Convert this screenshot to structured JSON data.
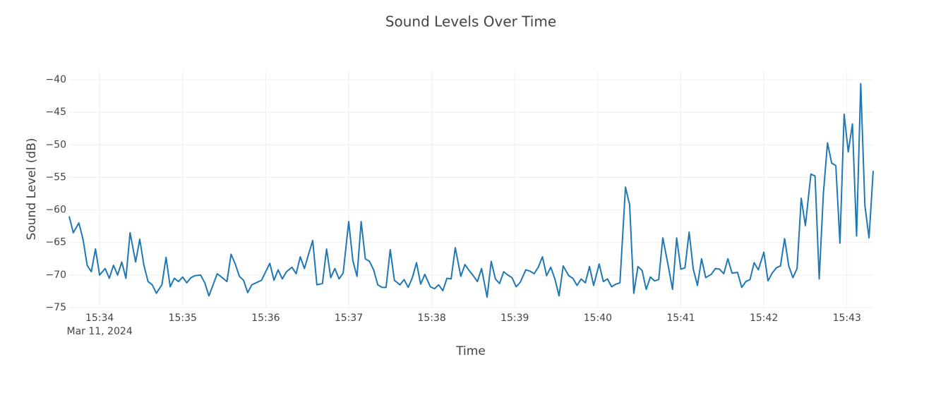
{
  "chart_data": {
    "type": "line",
    "title": "Sound Levels Over Time",
    "x_label": "Time",
    "y_label": "Sound Level (dB)",
    "x_date_label": "Mar 11, 2024",
    "x": [
      "2024-03-11 15:33:38",
      "2024-03-11 15:33:41",
      "2024-03-11 15:33:45",
      "2024-03-11 15:33:48",
      "2024-03-11 15:33:51",
      "2024-03-11 15:33:54",
      "2024-03-11 15:33:57",
      "2024-03-11 15:34:00",
      "2024-03-11 15:34:04",
      "2024-03-11 15:34:07",
      "2024-03-11 15:34:10",
      "2024-03-11 15:34:13",
      "2024-03-11 15:34:16",
      "2024-03-11 15:34:19",
      "2024-03-11 15:34:22",
      "2024-03-11 15:34:26",
      "2024-03-11 15:34:29",
      "2024-03-11 15:34:32",
      "2024-03-11 15:34:35",
      "2024-03-11 15:34:38",
      "2024-03-11 15:34:41",
      "2024-03-11 15:34:45",
      "2024-03-11 15:34:48",
      "2024-03-11 15:34:51",
      "2024-03-11 15:34:54",
      "2024-03-11 15:34:57",
      "2024-03-11 15:35:00",
      "2024-03-11 15:35:03",
      "2024-03-11 15:35:06",
      "2024-03-11 15:35:09",
      "2024-03-11 15:35:13",
      "2024-03-11 15:35:16",
      "2024-03-11 15:35:19",
      "2024-03-11 15:35:22",
      "2024-03-11 15:35:25",
      "2024-03-11 15:35:28",
      "2024-03-11 15:35:32",
      "2024-03-11 15:35:35",
      "2024-03-11 15:35:38",
      "2024-03-11 15:35:41",
      "2024-03-11 15:35:44",
      "2024-03-11 15:35:47",
      "2024-03-11 15:35:50",
      "2024-03-11 15:35:53",
      "2024-03-11 15:35:57",
      "2024-03-11 15:36:00",
      "2024-03-11 15:36:03",
      "2024-03-11 15:36:06",
      "2024-03-11 15:36:09",
      "2024-03-11 15:36:12",
      "2024-03-11 15:36:15",
      "2024-03-11 15:36:19",
      "2024-03-11 15:36:22",
      "2024-03-11 15:36:25",
      "2024-03-11 15:36:28",
      "2024-03-11 15:36:31",
      "2024-03-11 15:36:34",
      "2024-03-11 15:36:37",
      "2024-03-11 15:36:41",
      "2024-03-11 15:36:44",
      "2024-03-11 15:36:47",
      "2024-03-11 15:36:50",
      "2024-03-11 15:36:53",
      "2024-03-11 15:36:56",
      "2024-03-11 15:37:00",
      "2024-03-11 15:37:03",
      "2024-03-11 15:37:06",
      "2024-03-11 15:37:09",
      "2024-03-11 15:37:12",
      "2024-03-11 15:37:15",
      "2024-03-11 15:37:18",
      "2024-03-11 15:37:21",
      "2024-03-11 15:37:24",
      "2024-03-11 15:37:27",
      "2024-03-11 15:37:30",
      "2024-03-11 15:37:33",
      "2024-03-11 15:37:37",
      "2024-03-11 15:37:40",
      "2024-03-11 15:37:43",
      "2024-03-11 15:37:46",
      "2024-03-11 15:37:49",
      "2024-03-11 15:37:52",
      "2024-03-11 15:37:55",
      "2024-03-11 15:37:59",
      "2024-03-11 15:38:02",
      "2024-03-11 15:38:05",
      "2024-03-11 15:38:08",
      "2024-03-11 15:38:11",
      "2024-03-11 15:38:14",
      "2024-03-11 15:38:17",
      "2024-03-11 15:38:21",
      "2024-03-11 15:38:24",
      "2024-03-11 15:38:27",
      "2024-03-11 15:38:30",
      "2024-03-11 15:38:33",
      "2024-03-11 15:38:36",
      "2024-03-11 15:38:40",
      "2024-03-11 15:38:43",
      "2024-03-11 15:38:46",
      "2024-03-11 15:38:49",
      "2024-03-11 15:38:52",
      "2024-03-11 15:38:55",
      "2024-03-11 15:38:58",
      "2024-03-11 15:39:01",
      "2024-03-11 15:39:04",
      "2024-03-11 15:39:08",
      "2024-03-11 15:39:11",
      "2024-03-11 15:39:14",
      "2024-03-11 15:39:17",
      "2024-03-11 15:39:20",
      "2024-03-11 15:39:23",
      "2024-03-11 15:39:26",
      "2024-03-11 15:39:29",
      "2024-03-11 15:39:32",
      "2024-03-11 15:39:35",
      "2024-03-11 15:39:39",
      "2024-03-11 15:39:42",
      "2024-03-11 15:39:45",
      "2024-03-11 15:39:48",
      "2024-03-11 15:39:51",
      "2024-03-11 15:39:54",
      "2024-03-11 15:39:57",
      "2024-03-11 15:40:01",
      "2024-03-11 15:40:04",
      "2024-03-11 15:40:07",
      "2024-03-11 15:40:10",
      "2024-03-11 15:40:13",
      "2024-03-11 15:40:16",
      "2024-03-11 15:40:20",
      "2024-03-11 15:40:23",
      "2024-03-11 15:40:26",
      "2024-03-11 15:40:29",
      "2024-03-11 15:40:32",
      "2024-03-11 15:40:35",
      "2024-03-11 15:40:38",
      "2024-03-11 15:40:41",
      "2024-03-11 15:40:44",
      "2024-03-11 15:40:47",
      "2024-03-11 15:40:51",
      "2024-03-11 15:40:54",
      "2024-03-11 15:40:57",
      "2024-03-11 15:41:00",
      "2024-03-11 15:41:03",
      "2024-03-11 15:41:06",
      "2024-03-11 15:41:09",
      "2024-03-11 15:41:12",
      "2024-03-11 15:41:15",
      "2024-03-11 15:41:18",
      "2024-03-11 15:41:22",
      "2024-03-11 15:41:25",
      "2024-03-11 15:41:28",
      "2024-03-11 15:41:31",
      "2024-03-11 15:41:34",
      "2024-03-11 15:41:37",
      "2024-03-11 15:41:41",
      "2024-03-11 15:41:44",
      "2024-03-11 15:41:47",
      "2024-03-11 15:41:50",
      "2024-03-11 15:41:53",
      "2024-03-11 15:41:56",
      "2024-03-11 15:42:00",
      "2024-03-11 15:42:03",
      "2024-03-11 15:42:06",
      "2024-03-11 15:42:09",
      "2024-03-11 15:42:12",
      "2024-03-11 15:42:15",
      "2024-03-11 15:42:18",
      "2024-03-11 15:42:21",
      "2024-03-11 15:42:24",
      "2024-03-11 15:42:27",
      "2024-03-11 15:42:30",
      "2024-03-11 15:42:34",
      "2024-03-11 15:42:37",
      "2024-03-11 15:42:40",
      "2024-03-11 15:42:43",
      "2024-03-11 15:42:46",
      "2024-03-11 15:42:49",
      "2024-03-11 15:42:52",
      "2024-03-11 15:42:55",
      "2024-03-11 15:42:58",
      "2024-03-11 15:43:01",
      "2024-03-11 15:43:04",
      "2024-03-11 15:43:07",
      "2024-03-11 15:43:10",
      "2024-03-11 15:43:13",
      "2024-03-11 15:43:16",
      "2024-03-11 15:43:19"
    ],
    "series": [
      {
        "name": "Sound Level",
        "color": "#1f77b4",
        "values": [
          -61,
          -63.5,
          -62,
          -64.5,
          -68.5,
          -69.5,
          -66,
          -70,
          -69,
          -70.5,
          -68.5,
          -70,
          -68,
          -70.5,
          -63.5,
          -68,
          -64.5,
          -68.5,
          -71,
          -71.5,
          -72.8,
          -71.5,
          -67.3,
          -71.8,
          -70.5,
          -71,
          -70.3,
          -71.2,
          -70.4,
          -70.1,
          -70,
          -71.2,
          -73.2,
          -71.5,
          -69.8,
          -70.3,
          -71,
          -66.8,
          -68.3,
          -70.2,
          -70.8,
          -72.7,
          -71.5,
          -71.2,
          -70.8,
          -69.5,
          -68.2,
          -70.8,
          -69.2,
          -70.6,
          -69.5,
          -68.8,
          -69.8,
          -67.2,
          -69,
          -66.8,
          -64.7,
          -71.5,
          -71.3,
          -66,
          -70.4,
          -69,
          -70.6,
          -69.7,
          -61.8,
          -67.8,
          -70.2,
          -61.8,
          -67.5,
          -67.9,
          -69.2,
          -71.5,
          -71.9,
          -71.9,
          -66.1,
          -70.8,
          -71.5,
          -70.7,
          -71.9,
          -70.4,
          -68.1,
          -71.4,
          -69.9,
          -71.8,
          -72.1,
          -71.5,
          -72.4,
          -70.5,
          -70.6,
          -65.8,
          -70.2,
          -68.4,
          -69.3,
          -70.1,
          -71,
          -69,
          -73.4,
          -67.9,
          -70.6,
          -71.3,
          -69.5,
          -70,
          -70.4,
          -71.8,
          -71.1,
          -69.2,
          -69.4,
          -69.8,
          -68.8,
          -67.2,
          -70.1,
          -68.8,
          -70.6,
          -73.2,
          -68.6,
          -70.1,
          -70.5,
          -71.6,
          -70.6,
          -71.2,
          -68.7,
          -71.6,
          -68.3,
          -71,
          -70.6,
          -71.8,
          -71.4,
          -71.2,
          -56.5,
          -59.2,
          -72.8,
          -68.7,
          -69.3,
          -72.2,
          -70.3,
          -70.9,
          -70.7,
          -64.3,
          -68.7,
          -72.2,
          -64.3,
          -69.1,
          -68.9,
          -63.4,
          -69.1,
          -71.6,
          -67.5,
          -70.4,
          -69.9,
          -69,
          -69.1,
          -69.8,
          -67.5,
          -69.7,
          -69.6,
          -71.9,
          -71,
          -70.7,
          -68.1,
          -69.2,
          -66.5,
          -70.9,
          -69.7,
          -68.9,
          -68.6,
          -64.4,
          -68.6,
          -70.4,
          -69,
          -58.2,
          -62.4,
          -54.5,
          -54.8,
          -70.6,
          -57.5,
          -49.7,
          -52.8,
          -53.2,
          -65.1,
          -45.3,
          -51.1,
          -46.8,
          -64,
          -40.6,
          -59.3,
          -64.3,
          -54
        ]
      }
    ],
    "xlim": [
      "2024-03-11 15:33:38",
      "2024-03-11 15:43:19"
    ],
    "xticks": [
      {
        "value": "2024-03-11 15:34:00",
        "label": "15:34"
      },
      {
        "value": "2024-03-11 15:35:00",
        "label": "15:35"
      },
      {
        "value": "2024-03-11 15:36:00",
        "label": "15:36"
      },
      {
        "value": "2024-03-11 15:37:00",
        "label": "15:37"
      },
      {
        "value": "2024-03-11 15:38:00",
        "label": "15:38"
      },
      {
        "value": "2024-03-11 15:39:00",
        "label": "15:39"
      },
      {
        "value": "2024-03-11 15:40:00",
        "label": "15:40"
      },
      {
        "value": "2024-03-11 15:41:00",
        "label": "15:41"
      },
      {
        "value": "2024-03-11 15:42:00",
        "label": "15:42"
      },
      {
        "value": "2024-03-11 15:43:00",
        "label": "15:43"
      }
    ],
    "ylim": [
      -75,
      -38.7
    ],
    "yticks": [
      {
        "value": -75,
        "label": "−75"
      },
      {
        "value": -70,
        "label": "−70"
      },
      {
        "value": -65,
        "label": "−65"
      },
      {
        "value": -60,
        "label": "−60"
      },
      {
        "value": -55,
        "label": "−55"
      },
      {
        "value": -50,
        "label": "−50"
      },
      {
        "value": -45,
        "label": "−45"
      },
      {
        "value": -40,
        "label": "−40"
      }
    ],
    "grid": true
  }
}
